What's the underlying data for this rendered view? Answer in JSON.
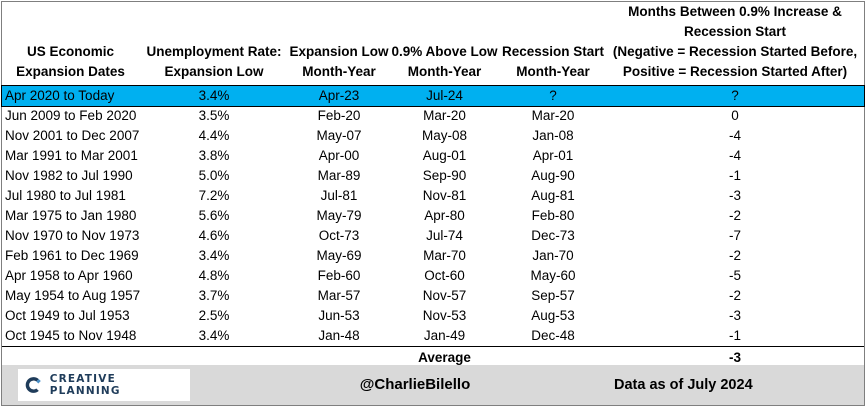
{
  "table": {
    "headers": [
      [
        "US Economic",
        "Expansion Dates"
      ],
      [
        "Unemployment Rate:",
        "Expansion Low"
      ],
      [
        "Expansion Low",
        "Month-Year"
      ],
      [
        "0.9% Above Low",
        "Month-Year"
      ],
      [
        "Recession Start",
        "Month-Year"
      ],
      [
        "Months Between 0.9% Increase &",
        "Recession Start",
        "(Negative = Recession Started Before,",
        "Positive = Recession Started After)"
      ]
    ],
    "rows": [
      [
        "Apr 2020 to Today",
        "3.4%",
        "Apr-23",
        "Jul-24",
        "?",
        "?"
      ],
      [
        "Jun 2009 to Feb 2020",
        "3.5%",
        "Feb-20",
        "Mar-20",
        "Mar-20",
        "0"
      ],
      [
        "Nov 2001 to Dec 2007",
        "4.4%",
        "May-07",
        "May-08",
        "Jan-08",
        "-4"
      ],
      [
        "Mar 1991 to Mar 2001",
        "3.8%",
        "Apr-00",
        "Aug-01",
        "Apr-01",
        "-4"
      ],
      [
        "Nov 1982 to Jul 1990",
        "5.0%",
        "Mar-89",
        "Sep-90",
        "Aug-90",
        "-1"
      ],
      [
        "Jul 1980 to Jul 1981",
        "7.2%",
        "Jul-81",
        "Nov-81",
        "Aug-81",
        "-3"
      ],
      [
        "Mar 1975 to Jan 1980",
        "5.6%",
        "May-79",
        "Apr-80",
        "Feb-80",
        "-2"
      ],
      [
        "Nov 1970 to Nov 1973",
        "4.6%",
        "Oct-73",
        "Jul-74",
        "Dec-73",
        "-7"
      ],
      [
        "Feb 1961 to Dec 1969",
        "3.4%",
        "May-69",
        "Mar-70",
        "Jan-70",
        "-2"
      ],
      [
        "Apr 1958 to Apr 1960",
        "4.8%",
        "Feb-60",
        "Oct-60",
        "May-60",
        "-5"
      ],
      [
        "May 1954 to Aug 1957",
        "3.7%",
        "Mar-57",
        "Nov-57",
        "Sep-57",
        "-2"
      ],
      [
        "Oct 1949 to Jul 1953",
        "2.5%",
        "Jun-53",
        "Nov-53",
        "Aug-53",
        "-3"
      ],
      [
        "Oct 1945 to Nov 1948",
        "3.4%",
        "Jan-48",
        "Jan-49",
        "Dec-48",
        "-1"
      ]
    ],
    "average": {
      "label": "Average",
      "value": "-3"
    },
    "highlight_color": "#00b0f0"
  },
  "footer": {
    "logo_text": "CREATIVE PLANNING",
    "logo_icon": "creative-planning-logo",
    "handle": "@CharlieBilello",
    "as_of": "Data as of July 2024",
    "background": "#d9d9d9"
  }
}
